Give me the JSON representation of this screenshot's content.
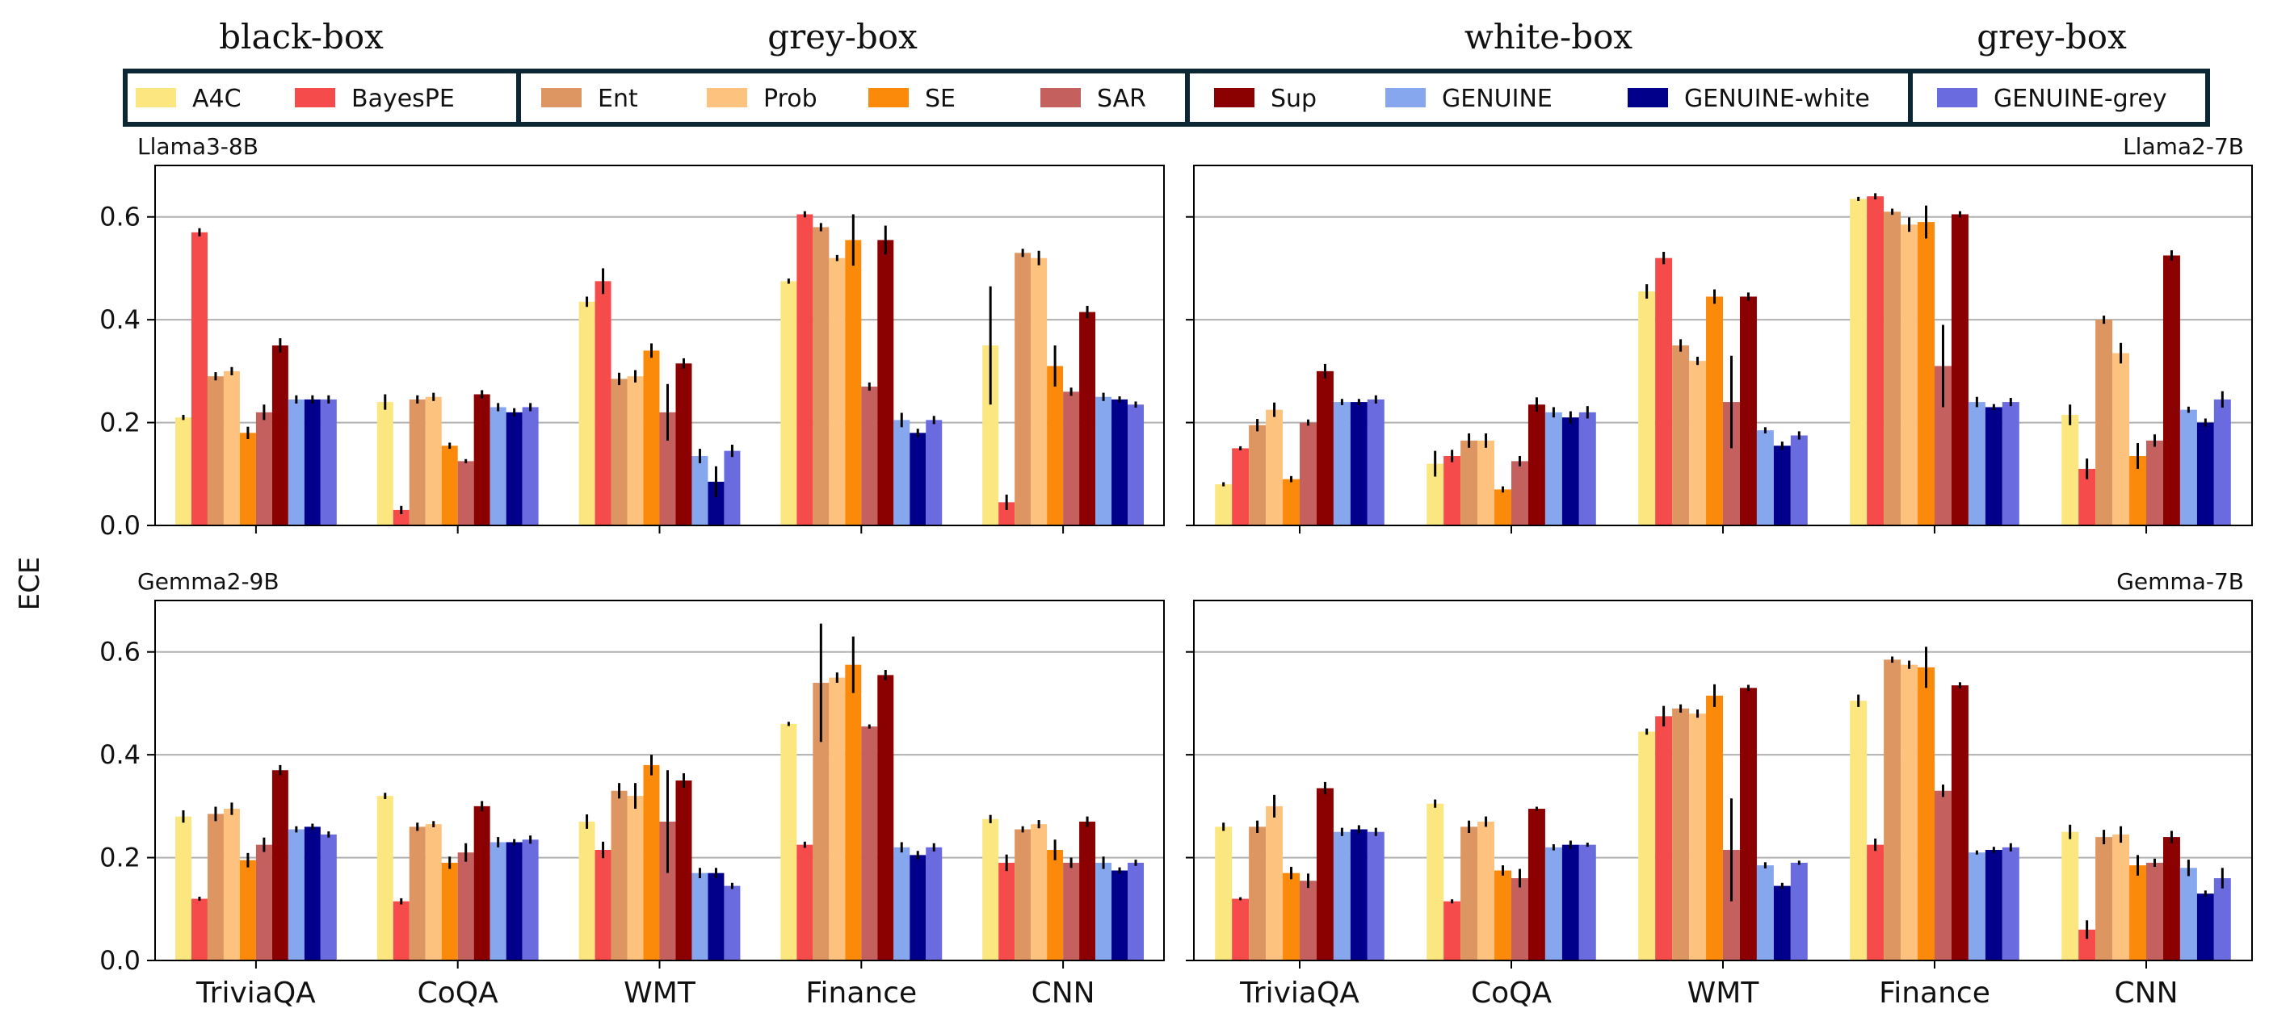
{
  "legend_groups": [
    {
      "label": "black-box",
      "members": [
        "A4C",
        "BayesPE"
      ]
    },
    {
      "label": "grey-box",
      "members": [
        "Ent",
        "Prob",
        "SE",
        "SAR"
      ]
    },
    {
      "label": "white-box",
      "members": [
        "Sup",
        "GENUINE",
        "GENUINE-white"
      ]
    },
    {
      "label": "grey-box",
      "members": [
        "GENUINE-grey"
      ]
    }
  ],
  "chart_data": {
    "type": "bar",
    "ylabel": "ECE",
    "categories": [
      "TriviaQA",
      "CoQA",
      "WMT",
      "Finance",
      "CNN"
    ],
    "ylim": [
      0,
      0.7
    ],
    "yticks": [
      "0.0",
      "0.2",
      "0.4",
      "0.6"
    ],
    "ytick_values": [
      0,
      0.2,
      0.4,
      0.6
    ],
    "grid": "horizontal",
    "series": [
      {
        "name": "A4C",
        "color": "#fce680"
      },
      {
        "name": "BayesPE",
        "color": "#f54b4b"
      },
      {
        "name": "Ent",
        "color": "#dd9561"
      },
      {
        "name": "Prob",
        "color": "#fdc27d"
      },
      {
        "name": "SE",
        "color": "#fb8a0a"
      },
      {
        "name": "SAR",
        "color": "#c4615f"
      },
      {
        "name": "Sup",
        "color": "#8b0000"
      },
      {
        "name": "GENUINE",
        "color": "#86a7ee"
      },
      {
        "name": "GENUINE-white",
        "color": "#00008b"
      },
      {
        "name": "GENUINE-grey",
        "color": "#6b6be0"
      }
    ],
    "panels": [
      {
        "title": "Llama3-8B",
        "title_align": "left",
        "values": [
          [
            0.21,
            0.57,
            0.29,
            0.3,
            0.18,
            0.22,
            0.35,
            0.245,
            0.245,
            0.245
          ],
          [
            0.24,
            0.03,
            0.245,
            0.25,
            0.155,
            0.125,
            0.255,
            0.23,
            0.22,
            0.23
          ],
          [
            0.435,
            0.475,
            0.285,
            0.29,
            0.34,
            0.22,
            0.315,
            0.135,
            0.085,
            0.145
          ],
          [
            0.475,
            0.605,
            0.58,
            0.52,
            0.555,
            0.27,
            0.555,
            0.205,
            0.18,
            0.205
          ],
          [
            0.35,
            0.045,
            0.53,
            0.52,
            0.31,
            0.26,
            0.415,
            0.25,
            0.245,
            0.235
          ]
        ],
        "errors": [
          [
            0.005,
            0.008,
            0.008,
            0.008,
            0.012,
            0.015,
            0.014,
            0.008,
            0.008,
            0.008
          ],
          [
            0.015,
            0.008,
            0.008,
            0.008,
            0.006,
            0.004,
            0.008,
            0.008,
            0.008,
            0.008
          ],
          [
            0.01,
            0.025,
            0.012,
            0.012,
            0.014,
            0.055,
            0.01,
            0.014,
            0.03,
            0.012
          ],
          [
            0.005,
            0.006,
            0.008,
            0.006,
            0.05,
            0.008,
            0.028,
            0.014,
            0.008,
            0.008
          ],
          [
            0.115,
            0.015,
            0.008,
            0.014,
            0.04,
            0.008,
            0.012,
            0.008,
            0.006,
            0.006
          ]
        ]
      },
      {
        "title": "Llama2-7B",
        "title_align": "right",
        "values": [
          [
            0.08,
            0.15,
            0.195,
            0.225,
            0.09,
            0.2,
            0.3,
            0.24,
            0.24,
            0.245
          ],
          [
            0.12,
            0.135,
            0.165,
            0.165,
            0.07,
            0.125,
            0.235,
            0.22,
            0.21,
            0.22
          ],
          [
            0.455,
            0.52,
            0.35,
            0.32,
            0.445,
            0.24,
            0.445,
            0.185,
            0.155,
            0.175
          ],
          [
            0.635,
            0.64,
            0.61,
            0.585,
            0.59,
            0.31,
            0.605,
            0.24,
            0.23,
            0.24
          ],
          [
            0.215,
            0.11,
            0.4,
            0.335,
            0.135,
            0.165,
            0.525,
            0.225,
            0.2,
            0.245
          ]
        ],
        "errors": [
          [
            0.004,
            0.004,
            0.012,
            0.014,
            0.006,
            0.006,
            0.014,
            0.006,
            0.006,
            0.008
          ],
          [
            0.025,
            0.012,
            0.014,
            0.014,
            0.006,
            0.01,
            0.014,
            0.01,
            0.012,
            0.012
          ],
          [
            0.014,
            0.012,
            0.012,
            0.008,
            0.014,
            0.09,
            0.008,
            0.006,
            0.008,
            0.008
          ],
          [
            0.004,
            0.006,
            0.006,
            0.014,
            0.032,
            0.08,
            0.006,
            0.01,
            0.006,
            0.008
          ],
          [
            0.02,
            0.02,
            0.008,
            0.02,
            0.025,
            0.012,
            0.01,
            0.006,
            0.008,
            0.016
          ]
        ]
      },
      {
        "title": "Gemma2-9B",
        "title_align": "left",
        "values": [
          [
            0.28,
            0.12,
            0.285,
            0.295,
            0.195,
            0.225,
            0.37,
            0.255,
            0.26,
            0.245
          ],
          [
            0.32,
            0.115,
            0.26,
            0.265,
            0.19,
            0.21,
            0.3,
            0.23,
            0.23,
            0.235
          ],
          [
            0.27,
            0.215,
            0.33,
            0.32,
            0.38,
            0.27,
            0.35,
            0.17,
            0.17,
            0.145
          ],
          [
            0.46,
            0.225,
            0.54,
            0.55,
            0.575,
            0.455,
            0.555,
            0.22,
            0.205,
            0.22
          ],
          [
            0.275,
            0.19,
            0.255,
            0.265,
            0.215,
            0.19,
            0.27,
            0.19,
            0.175,
            0.19
          ]
        ],
        "errors": [
          [
            0.012,
            0.004,
            0.014,
            0.012,
            0.014,
            0.014,
            0.01,
            0.006,
            0.006,
            0.006
          ],
          [
            0.006,
            0.006,
            0.008,
            0.006,
            0.012,
            0.018,
            0.01,
            0.01,
            0.006,
            0.008
          ],
          [
            0.014,
            0.016,
            0.015,
            0.025,
            0.02,
            0.1,
            0.014,
            0.01,
            0.01,
            0.006
          ],
          [
            0.004,
            0.006,
            0.115,
            0.01,
            0.055,
            0.004,
            0.01,
            0.01,
            0.008,
            0.008
          ],
          [
            0.008,
            0.016,
            0.006,
            0.008,
            0.02,
            0.01,
            0.01,
            0.012,
            0.006,
            0.006
          ]
        ]
      },
      {
        "title": "Gemma-7B",
        "title_align": "right",
        "values": [
          [
            0.26,
            0.12,
            0.26,
            0.3,
            0.17,
            0.155,
            0.335,
            0.25,
            0.255,
            0.25
          ],
          [
            0.305,
            0.115,
            0.26,
            0.27,
            0.175,
            0.16,
            0.295,
            0.22,
            0.225,
            0.225
          ],
          [
            0.445,
            0.475,
            0.49,
            0.48,
            0.515,
            0.215,
            0.53,
            0.185,
            0.145,
            0.19
          ],
          [
            0.505,
            0.225,
            0.585,
            0.575,
            0.57,
            0.33,
            0.535,
            0.21,
            0.215,
            0.22
          ],
          [
            0.25,
            0.06,
            0.24,
            0.245,
            0.185,
            0.19,
            0.24,
            0.18,
            0.13,
            0.16
          ]
        ],
        "errors": [
          [
            0.008,
            0.003,
            0.012,
            0.022,
            0.012,
            0.014,
            0.012,
            0.008,
            0.008,
            0.008
          ],
          [
            0.008,
            0.004,
            0.012,
            0.01,
            0.01,
            0.018,
            0.004,
            0.006,
            0.008,
            0.004
          ],
          [
            0.006,
            0.02,
            0.008,
            0.008,
            0.022,
            0.1,
            0.006,
            0.006,
            0.006,
            0.004
          ],
          [
            0.012,
            0.012,
            0.006,
            0.008,
            0.04,
            0.012,
            0.006,
            0.004,
            0.006,
            0.008
          ],
          [
            0.014,
            0.018,
            0.014,
            0.016,
            0.02,
            0.008,
            0.012,
            0.016,
            0.006,
            0.02
          ]
        ]
      }
    ]
  }
}
